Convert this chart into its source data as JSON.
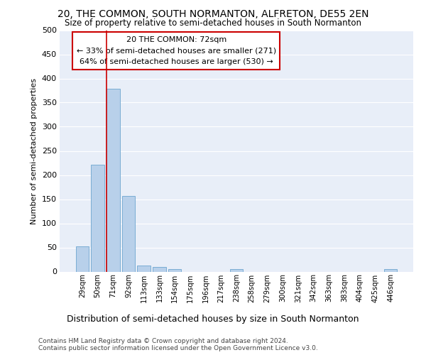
{
  "title": "20, THE COMMON, SOUTH NORMANTON, ALFRETON, DE55 2EN",
  "subtitle": "Size of property relative to semi-detached houses in South Normanton",
  "xlabel_bottom": "Distribution of semi-detached houses by size in South Normanton",
  "ylabel": "Number of semi-detached properties",
  "categories": [
    "29sqm",
    "50sqm",
    "71sqm",
    "92sqm",
    "113sqm",
    "133sqm",
    "154sqm",
    "175sqm",
    "196sqm",
    "217sqm",
    "238sqm",
    "258sqm",
    "279sqm",
    "300sqm",
    "321sqm",
    "342sqm",
    "363sqm",
    "383sqm",
    "404sqm",
    "425sqm",
    "446sqm"
  ],
  "values": [
    52,
    222,
    378,
    157,
    13,
    9,
    5,
    0,
    0,
    0,
    5,
    0,
    0,
    0,
    0,
    0,
    0,
    0,
    0,
    0,
    5
  ],
  "bar_color": "#b8d0ea",
  "bar_edge_color": "#7aadd4",
  "highlight_line_color": "#cc0000",
  "annotation_line1": "20 THE COMMON: 72sqm",
  "annotation_line2": "← 33% of semi-detached houses are smaller (271)",
  "annotation_line3": "64% of semi-detached houses are larger (530) →",
  "annotation_box_color": "#ffffff",
  "annotation_box_edge_color": "#cc0000",
  "ylim": [
    0,
    500
  ],
  "yticks": [
    0,
    50,
    100,
    150,
    200,
    250,
    300,
    350,
    400,
    450,
    500
  ],
  "background_color": "#e8eef8",
  "grid_color": "#ffffff",
  "footer_line1": "Contains HM Land Registry data © Crown copyright and database right 2024.",
  "footer_line2": "Contains public sector information licensed under the Open Government Licence v3.0."
}
